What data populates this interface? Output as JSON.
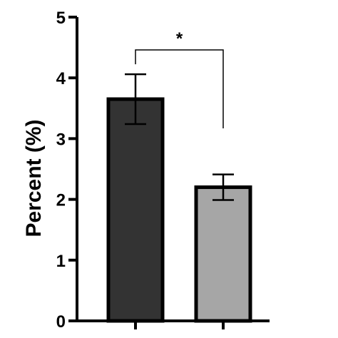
{
  "chart_data": {
    "type": "bar",
    "title": "",
    "xlabel": "",
    "ylabel": "Percent (%)",
    "ylim": [
      0,
      5
    ],
    "yticks": [
      0,
      1,
      2,
      3,
      4,
      5
    ],
    "categories": [
      "",
      ""
    ],
    "values": [
      3.65,
      2.2
    ],
    "error": [
      0.41,
      0.21
    ],
    "bar_colors": [
      "#333333",
      "#a6a6a6"
    ],
    "significance": {
      "pair": [
        0,
        1
      ],
      "label": "*"
    },
    "grid": false,
    "legend": "none"
  }
}
